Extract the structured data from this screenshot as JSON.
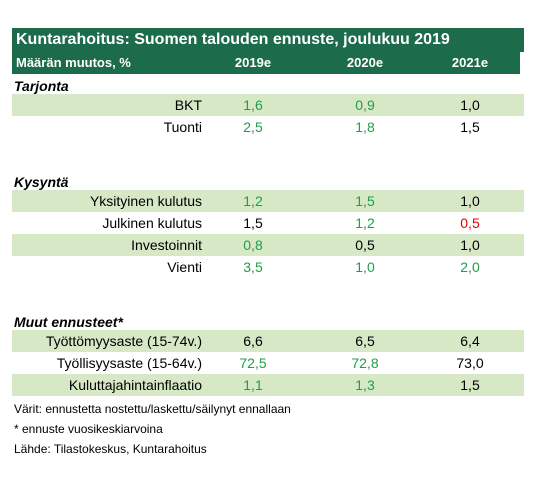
{
  "header": {
    "title": "Kuntarahoitus: Suomen talouden ennuste, joulukuu 2019",
    "unit": "Määrän muutos, %",
    "columns": [
      "2019e",
      "2020e",
      "2021e"
    ]
  },
  "sections": [
    {
      "title": "Tarjonta",
      "rows": [
        {
          "label": "BKT",
          "cells": [
            {
              "text": "1,6",
              "color": "#1e9e4a"
            },
            {
              "text": "0,9",
              "color": "#1e9e4a"
            },
            {
              "text": "1,0",
              "color": "#000000"
            }
          ]
        },
        {
          "label": "Tuonti",
          "cells": [
            {
              "text": "2,5",
              "color": "#1e9e4a"
            },
            {
              "text": "1,8",
              "color": "#1e9e4a"
            },
            {
              "text": "1,5",
              "color": "#000000"
            }
          ]
        }
      ]
    },
    {
      "title": "Kysyntä",
      "rows": [
        {
          "label": "Yksityinen kulutus",
          "cells": [
            {
              "text": "1,2",
              "color": "#1e9e4a"
            },
            {
              "text": "1,5",
              "color": "#1e9e4a"
            },
            {
              "text": "1,0",
              "color": "#000000"
            }
          ]
        },
        {
          "label": "Julkinen kulutus",
          "cells": [
            {
              "text": "1,5",
              "color": "#000000"
            },
            {
              "text": "1,2",
              "color": "#1e9e4a"
            },
            {
              "text": "0,5",
              "color": "#e00000"
            }
          ]
        },
        {
          "label": "Investoinnit",
          "cells": [
            {
              "text": "0,8",
              "color": "#1e9e4a"
            },
            {
              "text": "0,5",
              "color": "#000000"
            },
            {
              "text": "1,0",
              "color": "#000000"
            }
          ]
        },
        {
          "label": "Vienti",
          "cells": [
            {
              "text": "3,5",
              "color": "#1e9e4a"
            },
            {
              "text": "1,0",
              "color": "#1e9e4a"
            },
            {
              "text": "2,0",
              "color": "#1e9e4a"
            }
          ]
        }
      ]
    },
    {
      "title": "Muut ennusteet*",
      "rows": [
        {
          "label": "Työttömyysaste (15-74v.)",
          "cells": [
            {
              "text": "6,6",
              "color": "#000000"
            },
            {
              "text": "6,5",
              "color": "#000000"
            },
            {
              "text": "6,4",
              "color": "#000000"
            }
          ]
        },
        {
          "label": "Työllisyysaste (15-64v.)",
          "cells": [
            {
              "text": "72,5",
              "color": "#1e9e4a"
            },
            {
              "text": "72,8",
              "color": "#1e9e4a"
            },
            {
              "text": "73,0",
              "color": "#000000"
            }
          ]
        },
        {
          "label": "Kuluttajahintainflaatio",
          "cells": [
            {
              "text": "1,1",
              "color": "#1e9e4a"
            },
            {
              "text": "1,3",
              "color": "#1e9e4a"
            },
            {
              "text": "1,5",
              "color": "#000000"
            }
          ]
        }
      ]
    }
  ],
  "notes": [
    "Värit: ennustetta nostettu/laskettu/säilynyt ennallaan",
    "* ennuste vuosikeskiarvoina",
    "Lähde: Tilastokeskus, Kuntarahoitus"
  ]
}
